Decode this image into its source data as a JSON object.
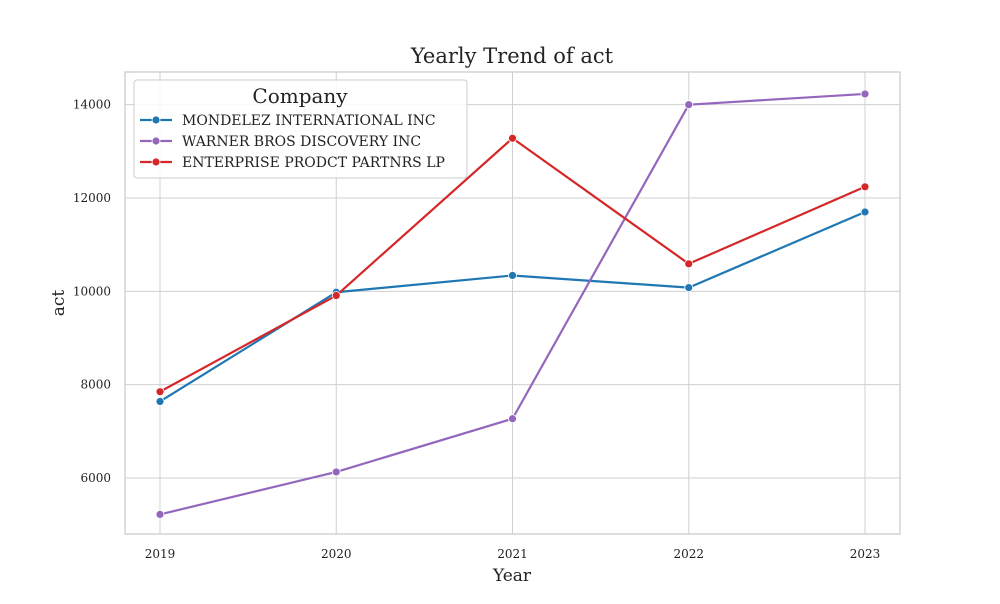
{
  "chart_data": {
    "type": "line",
    "title": "Yearly Trend of act",
    "xlabel": "Year",
    "ylabel": "act",
    "categories": [
      "2019",
      "2020",
      "2021",
      "2022",
      "2023"
    ],
    "yticks": [
      "6000",
      "8000",
      "10000",
      "12000",
      "14000"
    ],
    "ylim": [
      4800,
      14700
    ],
    "grid": true,
    "legend_title": "Company",
    "legend_position": "top-left",
    "series": [
      {
        "name": "MONDELEZ INTERNATIONAL INC",
        "color": "#1f77b4",
        "values": [
          7640,
          9980,
          10340,
          10080,
          11700
        ]
      },
      {
        "name": "WARNER BROS DISCOVERY INC",
        "color": "#9467bd",
        "values": [
          5220,
          6130,
          7270,
          14000,
          14230
        ]
      },
      {
        "name": "ENTERPRISE PRODCT PARTNRS LP",
        "color": "#d62728",
        "values": [
          7850,
          9910,
          13280,
          10590,
          12240
        ]
      }
    ]
  }
}
